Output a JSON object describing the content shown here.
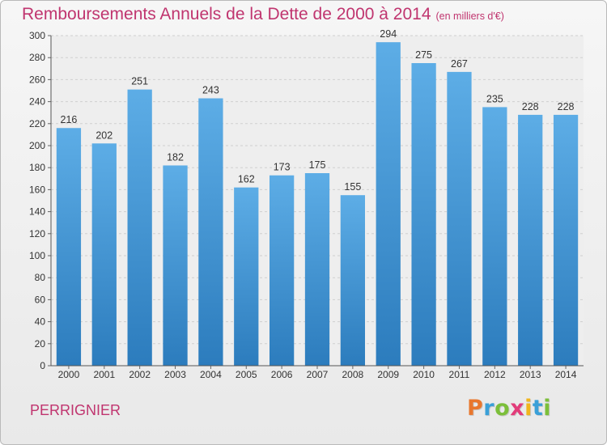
{
  "title": "Remboursements Annuels de la Dette de 2000 à 2014",
  "unit": "(en milliers d'€)",
  "commune": "PERRIGNIER",
  "logo": {
    "letters": [
      "P",
      "r",
      "o",
      "x",
      "i",
      "t",
      "i"
    ],
    "colors": [
      "#e8772e",
      "#3aa0d8",
      "#7cbf3a",
      "#e23c7a",
      "#f1b51c",
      "#3aa0d8",
      "#7cbf3a"
    ]
  },
  "colors": {
    "bar_top": "#5dade6",
    "bar_bottom": "#2c7cbd",
    "accent": "#c0356f"
  },
  "chart_data": {
    "type": "bar",
    "categories": [
      "2000",
      "2001",
      "2002",
      "2003",
      "2004",
      "2005",
      "2006",
      "2007",
      "2008",
      "2009",
      "2010",
      "2011",
      "2012",
      "2013",
      "2014"
    ],
    "values": [
      216,
      202,
      251,
      182,
      243,
      162,
      173,
      175,
      155,
      294,
      275,
      267,
      235,
      228,
      228
    ],
    "title": "Remboursements Annuels de la Dette de 2000 à 2014",
    "xlabel": "",
    "ylabel": "",
    "ylim": [
      0,
      300
    ],
    "yticks": [
      0,
      20,
      40,
      60,
      80,
      100,
      120,
      140,
      160,
      180,
      200,
      220,
      240,
      260,
      280,
      300
    ],
    "grid": true,
    "data_labels": true
  }
}
